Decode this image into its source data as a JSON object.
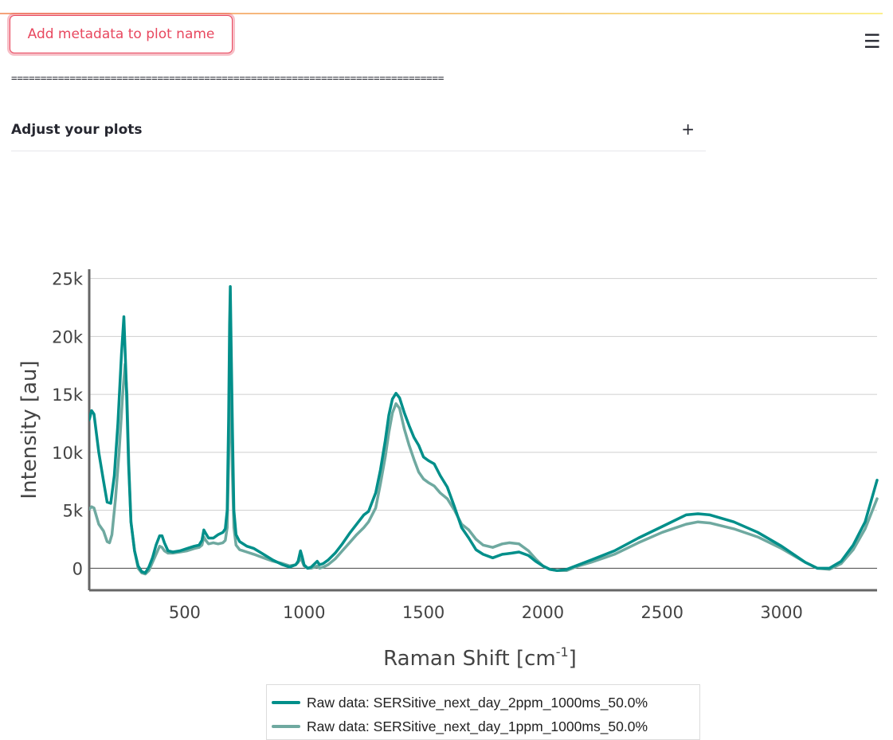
{
  "toolbar": {
    "metadata_button_label": "Add metadata to plot name",
    "menu_icon": "☰"
  },
  "divider_text": "==========================================================================",
  "expander": {
    "label": "Adjust your plots",
    "toggle_icon": "+"
  },
  "colors": {
    "accent": "#e8485f",
    "series_1": "#008f8a",
    "series_2": "#6fa9a0"
  },
  "chart_data": {
    "type": "line",
    "xlabel": "Raman Shift [cm",
    "xlabel_sup": "-1",
    "xlabel_end": "]",
    "ylabel": "Intensity [au]",
    "xlim": [
      100,
      3400
    ],
    "ylim": [
      -1900,
      25800
    ],
    "x_ticks": [
      500,
      1000,
      1500,
      2000,
      2500,
      3000
    ],
    "y_ticks": [
      0,
      5000,
      10000,
      15000,
      20000,
      25000
    ],
    "y_tick_labels": [
      "0",
      "5k",
      "10k",
      "15k",
      "20k",
      "25k"
    ],
    "grid": true,
    "legend_position": "bottom",
    "series": [
      {
        "name": "Raw data: SERSitive_next_day_2ppm_1000ms_50.0%",
        "color": "#008f8a",
        "points": [
          [
            100,
            12800
          ],
          [
            110,
            13600
          ],
          [
            120,
            13300
          ],
          [
            140,
            10000
          ],
          [
            160,
            7500
          ],
          [
            175,
            5700
          ],
          [
            190,
            5600
          ],
          [
            205,
            8000
          ],
          [
            220,
            12500
          ],
          [
            235,
            18500
          ],
          [
            245,
            21700
          ],
          [
            255,
            16000
          ],
          [
            265,
            9000
          ],
          [
            275,
            4000
          ],
          [
            290,
            1500
          ],
          [
            305,
            200
          ],
          [
            320,
            -300
          ],
          [
            335,
            -400
          ],
          [
            350,
            100
          ],
          [
            365,
            900
          ],
          [
            380,
            2000
          ],
          [
            395,
            2800
          ],
          [
            405,
            2800
          ],
          [
            415,
            2200
          ],
          [
            430,
            1500
          ],
          [
            450,
            1400
          ],
          [
            480,
            1500
          ],
          [
            510,
            1700
          ],
          [
            540,
            1900
          ],
          [
            560,
            2000
          ],
          [
            572,
            2400
          ],
          [
            580,
            3300
          ],
          [
            588,
            3000
          ],
          [
            600,
            2600
          ],
          [
            620,
            2600
          ],
          [
            640,
            2900
          ],
          [
            660,
            3100
          ],
          [
            670,
            3400
          ],
          [
            678,
            5000
          ],
          [
            684,
            13000
          ],
          [
            688,
            21000
          ],
          [
            691,
            24300
          ],
          [
            694,
            20000
          ],
          [
            700,
            12000
          ],
          [
            706,
            5000
          ],
          [
            715,
            2900
          ],
          [
            730,
            2300
          ],
          [
            760,
            1900
          ],
          [
            790,
            1700
          ],
          [
            830,
            1200
          ],
          [
            870,
            700
          ],
          [
            910,
            300
          ],
          [
            940,
            100
          ],
          [
            965,
            300
          ],
          [
            975,
            600
          ],
          [
            985,
            1500
          ],
          [
            992,
            1000
          ],
          [
            1000,
            300
          ],
          [
            1015,
            0
          ],
          [
            1030,
            100
          ],
          [
            1045,
            400
          ],
          [
            1055,
            600
          ],
          [
            1065,
            300
          ],
          [
            1080,
            400
          ],
          [
            1100,
            700
          ],
          [
            1130,
            1300
          ],
          [
            1160,
            2100
          ],
          [
            1190,
            3000
          ],
          [
            1220,
            3800
          ],
          [
            1250,
            4600
          ],
          [
            1270,
            4900
          ],
          [
            1300,
            6500
          ],
          [
            1320,
            8500
          ],
          [
            1340,
            11000
          ],
          [
            1355,
            13200
          ],
          [
            1370,
            14600
          ],
          [
            1385,
            15100
          ],
          [
            1400,
            14700
          ],
          [
            1420,
            13400
          ],
          [
            1440,
            12300
          ],
          [
            1460,
            11300
          ],
          [
            1480,
            10600
          ],
          [
            1500,
            9600
          ],
          [
            1520,
            9300
          ],
          [
            1545,
            9000
          ],
          [
            1570,
            8000
          ],
          [
            1600,
            7000
          ],
          [
            1630,
            5300
          ],
          [
            1660,
            3500
          ],
          [
            1690,
            2600
          ],
          [
            1720,
            1600
          ],
          [
            1750,
            1200
          ],
          [
            1790,
            900
          ],
          [
            1830,
            1200
          ],
          [
            1870,
            1300
          ],
          [
            1900,
            1400
          ],
          [
            1940,
            1100
          ],
          [
            1970,
            600
          ],
          [
            2000,
            200
          ],
          [
            2030,
            -100
          ],
          [
            2060,
            -200
          ],
          [
            2100,
            -100
          ],
          [
            2150,
            300
          ],
          [
            2200,
            700
          ],
          [
            2300,
            1500
          ],
          [
            2400,
            2600
          ],
          [
            2500,
            3600
          ],
          [
            2600,
            4600
          ],
          [
            2650,
            4700
          ],
          [
            2700,
            4600
          ],
          [
            2800,
            4000
          ],
          [
            2900,
            3100
          ],
          [
            3000,
            1900
          ],
          [
            3100,
            500
          ],
          [
            3150,
            0
          ],
          [
            3200,
            0
          ],
          [
            3250,
            600
          ],
          [
            3300,
            2000
          ],
          [
            3350,
            4000
          ],
          [
            3400,
            7600
          ]
        ]
      },
      {
        "name": "Raw data: SERSitive_next_day_1ppm_1000ms_50.0%",
        "color": "#6fa9a0",
        "points": [
          [
            100,
            5100
          ],
          [
            110,
            5300
          ],
          [
            120,
            5200
          ],
          [
            140,
            3800
          ],
          [
            160,
            3200
          ],
          [
            175,
            2300
          ],
          [
            185,
            2200
          ],
          [
            195,
            2900
          ],
          [
            210,
            6000
          ],
          [
            225,
            10000
          ],
          [
            240,
            15000
          ],
          [
            250,
            17600
          ],
          [
            258,
            15000
          ],
          [
            266,
            9000
          ],
          [
            275,
            4000
          ],
          [
            290,
            1500
          ],
          [
            305,
            0
          ],
          [
            320,
            -400
          ],
          [
            335,
            -500
          ],
          [
            350,
            -200
          ],
          [
            365,
            500
          ],
          [
            380,
            1200
          ],
          [
            395,
            1900
          ],
          [
            405,
            1800
          ],
          [
            415,
            1500
          ],
          [
            430,
            1300
          ],
          [
            450,
            1300
          ],
          [
            480,
            1400
          ],
          [
            510,
            1500
          ],
          [
            540,
            1700
          ],
          [
            560,
            1800
          ],
          [
            572,
            2000
          ],
          [
            580,
            2700
          ],
          [
            588,
            2400
          ],
          [
            600,
            2100
          ],
          [
            620,
            2200
          ],
          [
            640,
            2100
          ],
          [
            660,
            2200
          ],
          [
            670,
            2400
          ],
          [
            678,
            3500
          ],
          [
            684,
            9000
          ],
          [
            688,
            14000
          ],
          [
            691,
            16000
          ],
          [
            694,
            14000
          ],
          [
            700,
            8000
          ],
          [
            706,
            3500
          ],
          [
            715,
            2000
          ],
          [
            730,
            1600
          ],
          [
            760,
            1400
          ],
          [
            790,
            1200
          ],
          [
            830,
            900
          ],
          [
            870,
            600
          ],
          [
            910,
            400
          ],
          [
            940,
            200
          ],
          [
            965,
            300
          ],
          [
            975,
            500
          ],
          [
            985,
            900
          ],
          [
            992,
            600
          ],
          [
            1000,
            200
          ],
          [
            1015,
            0
          ],
          [
            1030,
            0
          ],
          [
            1045,
            100
          ],
          [
            1055,
            200
          ],
          [
            1065,
            0
          ],
          [
            1080,
            100
          ],
          [
            1100,
            300
          ],
          [
            1130,
            800
          ],
          [
            1160,
            1500
          ],
          [
            1190,
            2200
          ],
          [
            1220,
            2900
          ],
          [
            1250,
            3500
          ],
          [
            1270,
            4000
          ],
          [
            1300,
            5200
          ],
          [
            1320,
            7300
          ],
          [
            1340,
            9600
          ],
          [
            1355,
            11700
          ],
          [
            1370,
            13400
          ],
          [
            1385,
            14200
          ],
          [
            1400,
            13800
          ],
          [
            1420,
            12000
          ],
          [
            1440,
            10600
          ],
          [
            1460,
            9400
          ],
          [
            1480,
            8300
          ],
          [
            1500,
            7700
          ],
          [
            1520,
            7400
          ],
          [
            1545,
            7100
          ],
          [
            1570,
            6500
          ],
          [
            1600,
            6000
          ],
          [
            1630,
            5000
          ],
          [
            1660,
            3800
          ],
          [
            1690,
            3300
          ],
          [
            1720,
            2500
          ],
          [
            1750,
            2000
          ],
          [
            1790,
            1800
          ],
          [
            1830,
            2100
          ],
          [
            1860,
            2200
          ],
          [
            1900,
            2100
          ],
          [
            1940,
            1500
          ],
          [
            1970,
            800
          ],
          [
            2000,
            200
          ],
          [
            2030,
            -100
          ],
          [
            2060,
            -200
          ],
          [
            2100,
            -200
          ],
          [
            2150,
            200
          ],
          [
            2200,
            500
          ],
          [
            2300,
            1200
          ],
          [
            2400,
            2200
          ],
          [
            2500,
            3100
          ],
          [
            2600,
            3800
          ],
          [
            2650,
            4000
          ],
          [
            2700,
            3900
          ],
          [
            2800,
            3400
          ],
          [
            2900,
            2700
          ],
          [
            3000,
            1700
          ],
          [
            3100,
            500
          ],
          [
            3150,
            0
          ],
          [
            3200,
            -100
          ],
          [
            3250,
            400
          ],
          [
            3300,
            1600
          ],
          [
            3350,
            3400
          ],
          [
            3400,
            6000
          ]
        ]
      }
    ]
  }
}
